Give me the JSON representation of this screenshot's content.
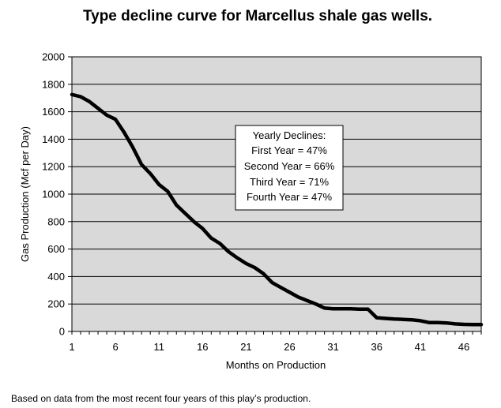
{
  "chart_data": {
    "type": "line",
    "title": "Type decline curve for Marcellus shale gas wells.",
    "xlabel": "Months on Production",
    "ylabel": "Gas Production (Mcf per Day)",
    "xlim": [
      1,
      48
    ],
    "ylim": [
      0,
      2000
    ],
    "x_ticks": [
      1,
      6,
      11,
      16,
      21,
      26,
      31,
      36,
      41,
      46
    ],
    "y_ticks": [
      0,
      200,
      400,
      600,
      800,
      1000,
      1200,
      1400,
      1600,
      1800,
      2000
    ],
    "grid": true,
    "legend": "none",
    "background_color": "#d9d9d9",
    "line_color": "#000000",
    "series": [
      {
        "x": [
          1,
          2,
          3,
          4,
          5,
          6,
          7,
          8,
          9,
          10,
          11,
          12,
          13,
          14,
          15,
          16,
          17,
          18,
          19,
          20,
          21,
          22,
          23,
          24,
          25,
          26,
          27,
          28,
          29,
          30,
          31,
          32,
          33,
          34,
          35,
          36,
          37,
          38,
          39,
          40,
          41,
          42,
          43,
          44,
          45,
          46,
          47,
          48
        ],
        "values": [
          1725,
          1710,
          1675,
          1625,
          1575,
          1545,
          1450,
          1340,
          1215,
          1150,
          1070,
          1020,
          920,
          860,
          800,
          750,
          680,
          640,
          580,
          535,
          495,
          465,
          420,
          355,
          320,
          285,
          250,
          225,
          200,
          170,
          165,
          165,
          165,
          162,
          162,
          100,
          95,
          90,
          88,
          85,
          78,
          65,
          65,
          62,
          55,
          52,
          50,
          50
        ]
      }
    ],
    "annotations": {
      "heading": "Yearly Declines:",
      "lines": [
        "First Year = 47%",
        "Second Year =  66%",
        "Third Year = 71%",
        "Fourth Year = 47%"
      ]
    }
  },
  "footnote": "Based on data from the most recent four years of this play’s production."
}
